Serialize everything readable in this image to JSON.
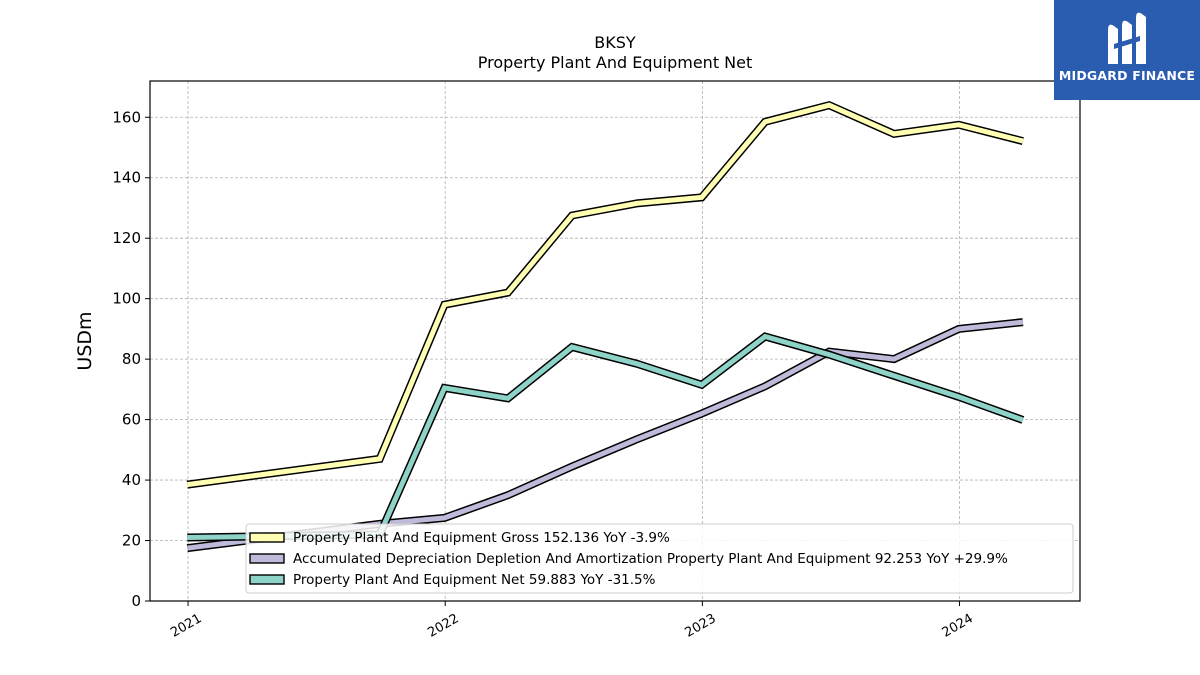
{
  "chart_data": {
    "type": "line",
    "title": "BKSY",
    "subtitle": "Property Plant And Equipment Net",
    "ylabel": "USDm",
    "xlabel": "",
    "ylim": [
      0,
      172
    ],
    "yticks": [
      0,
      20,
      40,
      60,
      80,
      100,
      120,
      140,
      160
    ],
    "xlim": [
      "2020-11-08",
      "2024-06-20"
    ],
    "xticks": [
      {
        "label": "2021",
        "date": "2021-01-01"
      },
      {
        "label": "2022",
        "date": "2022-01-01"
      },
      {
        "label": "2023",
        "date": "2023-01-01"
      },
      {
        "label": "2024",
        "date": "2024-01-01"
      }
    ],
    "grid": true,
    "legend_position": "bottom-right",
    "series": [
      {
        "name": "Property Plant And Equipment Gross",
        "legend_label": "Property Plant And Equipment Gross  152.136 YoY -3.9%",
        "color": "#ffffb3",
        "points": [
          {
            "x": "2020-12-31",
            "y": 38.5
          },
          {
            "x": "2021-09-30",
            "y": 47.0
          },
          {
            "x": "2021-12-31",
            "y": 98.0
          },
          {
            "x": "2022-03-31",
            "y": 102.0
          },
          {
            "x": "2022-06-30",
            "y": 127.5
          },
          {
            "x": "2022-09-30",
            "y": 131.5
          },
          {
            "x": "2022-12-31",
            "y": 133.5
          },
          {
            "x": "2023-03-31",
            "y": 158.5
          },
          {
            "x": "2023-06-30",
            "y": 164.0
          },
          {
            "x": "2023-09-30",
            "y": 154.5
          },
          {
            "x": "2023-12-31",
            "y": 157.5
          },
          {
            "x": "2024-03-31",
            "y": 152.136
          }
        ]
      },
      {
        "name": "Accumulated Depreciation Depletion And Amortization Property Plant And Equipment",
        "legend_label": "Accumulated Depreciation Depletion And Amortization Property Plant And Equipment  92.253 YoY +29.9%",
        "color": "#bebada",
        "points": [
          {
            "x": "2020-12-31",
            "y": 17.5
          },
          {
            "x": "2021-09-30",
            "y": 25.5
          },
          {
            "x": "2021-12-31",
            "y": 27.5
          },
          {
            "x": "2022-03-31",
            "y": 35.0
          },
          {
            "x": "2022-06-30",
            "y": 44.5
          },
          {
            "x": "2022-09-30",
            "y": 53.5
          },
          {
            "x": "2022-12-31",
            "y": 62.0
          },
          {
            "x": "2023-03-31",
            "y": 71.0
          },
          {
            "x": "2023-06-30",
            "y": 82.5
          },
          {
            "x": "2023-09-30",
            "y": 80.0
          },
          {
            "x": "2023-12-31",
            "y": 90.0
          },
          {
            "x": "2024-03-31",
            "y": 92.253
          }
        ]
      },
      {
        "name": "Property Plant And Equipment Net",
        "legend_label": "Property Plant And Equipment Net  59.883 YoY -31.5%",
        "color": "#8dd3c7",
        "points": [
          {
            "x": "2020-12-31",
            "y": 21.0
          },
          {
            "x": "2021-09-30",
            "y": 22.0
          },
          {
            "x": "2021-12-31",
            "y": 70.5
          },
          {
            "x": "2022-03-31",
            "y": 67.0
          },
          {
            "x": "2022-06-30",
            "y": 84.0
          },
          {
            "x": "2022-09-30",
            "y": 78.5
          },
          {
            "x": "2022-12-31",
            "y": 71.5
          },
          {
            "x": "2023-03-31",
            "y": 87.5
          },
          {
            "x": "2023-06-30",
            "y": 81.5
          },
          {
            "x": "2023-09-30",
            "y": 74.5
          },
          {
            "x": "2023-12-31",
            "y": 67.5
          },
          {
            "x": "2024-03-31",
            "y": 59.883
          }
        ]
      }
    ]
  },
  "logo": {
    "text": "MIDGARD FINANCE",
    "icon": "midgard-m-logo-icon",
    "background": "#2a5cb0"
  }
}
